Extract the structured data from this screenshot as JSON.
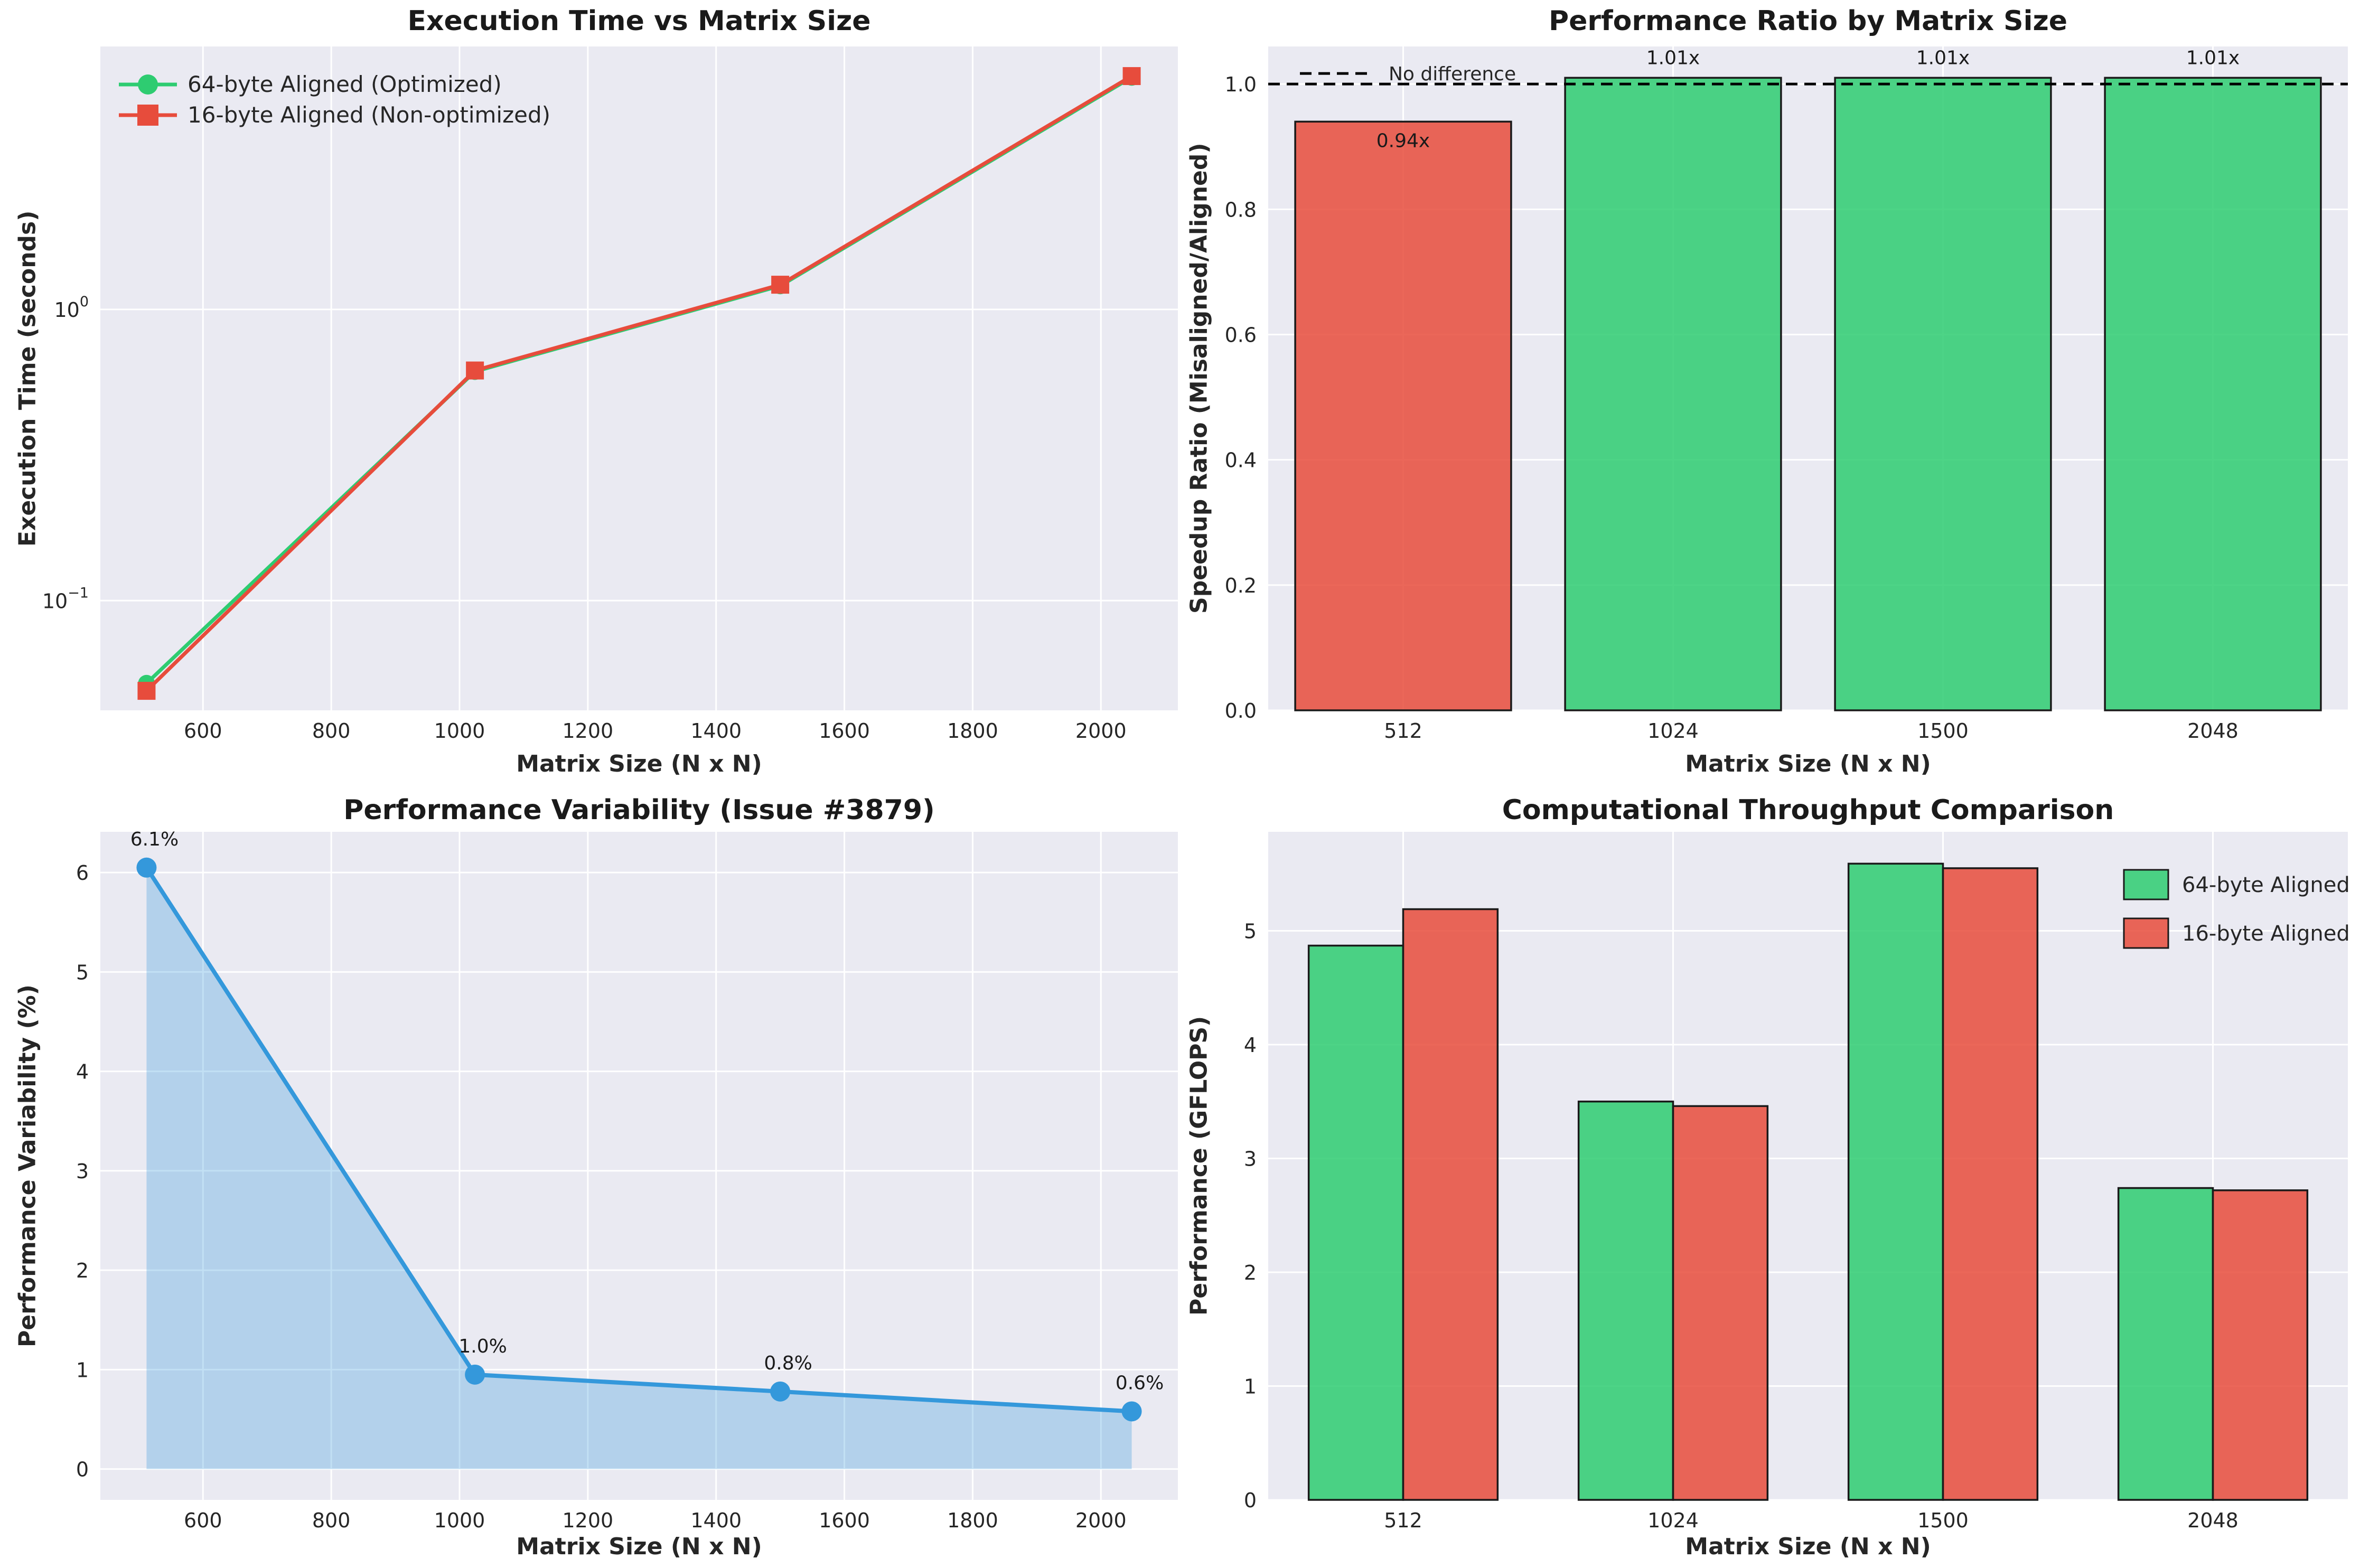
{
  "figure": {
    "background": "#ffffff",
    "plot_background": "#eaeaf2",
    "grid_color": "#ffffff",
    "tick_color": "#262626",
    "title_color": "#1a1a1a",
    "bar_edge_color": "#1a1a1a",
    "accent_green": "#2ecc71",
    "accent_red": "#e74c3c",
    "accent_blue": "#3498db"
  },
  "chart_data": [
    {
      "id": "execution-time",
      "type": "line",
      "title": "Execution Time vs Matrix Size",
      "xlabel": "Matrix Size (N x N)",
      "ylabel": "Execution Time (seconds)",
      "yscale": "log",
      "x": [
        512,
        1024,
        1500,
        2048
      ],
      "series": [
        {
          "name": "64-byte Aligned (Optimized)",
          "color": "#2ecc71",
          "marker": "circle",
          "values": [
            0.052,
            0.612,
            1.205,
            6.27
          ]
        },
        {
          "name": "16-byte Aligned (Non-optimized)",
          "color": "#e74c3c",
          "marker": "square",
          "values": [
            0.049,
            0.617,
            1.216,
            6.33
          ]
        }
      ],
      "xticks": [
        600,
        800,
        1000,
        1200,
        1400,
        1600,
        1800,
        2000
      ],
      "yticks": [
        {
          "value": 1,
          "base": "10",
          "exp": "0"
        },
        {
          "value": 0.1,
          "base": "10",
          "exp": "−1"
        }
      ],
      "xlim": [
        440,
        2120
      ],
      "ylim": [
        0.042,
        8.0
      ],
      "legend_position": "upper left",
      "grid": true
    },
    {
      "id": "performance-ratio",
      "type": "bar",
      "title": "Performance Ratio by Matrix Size",
      "xlabel": "Matrix Size (N x N)",
      "ylabel": "Speedup Ratio (Misaligned/Aligned)",
      "categories": [
        "512",
        "1024",
        "1500",
        "2048"
      ],
      "values": [
        0.94,
        1.01,
        1.01,
        1.01
      ],
      "bar_labels": [
        "0.94x",
        "1.01x",
        "1.01x",
        "1.01x"
      ],
      "bar_colors": [
        "#e74c3c",
        "#2ecc71",
        "#2ecc71",
        "#2ecc71"
      ],
      "bar_alpha": 0.85,
      "bar_width_frac": 0.8,
      "reference_line": {
        "value": 1.0,
        "label": "No difference",
        "style": "dashed",
        "color": "#000000"
      },
      "yticks": [
        {
          "value": 0.0,
          "label": "0.0"
        },
        {
          "value": 0.2,
          "label": "0.2"
        },
        {
          "value": 0.4,
          "label": "0.4"
        },
        {
          "value": 0.6,
          "label": "0.6"
        },
        {
          "value": 0.8,
          "label": "0.8"
        },
        {
          "value": 1.0,
          "label": "1.0"
        }
      ],
      "ylim": [
        0,
        1.06
      ],
      "grid": true
    },
    {
      "id": "performance-variability",
      "type": "area",
      "title": "Performance Variability (Issue #3879)",
      "xlabel": "Matrix Size (N x N)",
      "ylabel": "Performance Variability (%)",
      "x": [
        512,
        1024,
        1500,
        2048
      ],
      "values": [
        6.05,
        0.95,
        0.78,
        0.58
      ],
      "point_labels": [
        "6.1%",
        "1.0%",
        "0.8%",
        "0.6%"
      ],
      "color": "#3498db",
      "fill_alpha": 0.3,
      "fill_baseline": 0,
      "xticks": [
        600,
        800,
        1000,
        1200,
        1400,
        1600,
        1800,
        2000
      ],
      "yticks": [
        0,
        1,
        2,
        3,
        4,
        5,
        6
      ],
      "xlim": [
        440,
        2120
      ],
      "ylim": [
        -0.31,
        6.41
      ],
      "grid": true
    },
    {
      "id": "computational-throughput",
      "type": "grouped-bar",
      "title": "Computational Throughput Comparison",
      "xlabel": "Matrix Size (N x N)",
      "ylabel": "Performance (GFLOPS)",
      "categories": [
        "512",
        "1024",
        "1500",
        "2048"
      ],
      "series": [
        {
          "name": "64-byte Aligned",
          "color": "#2ecc71",
          "values": [
            4.87,
            3.5,
            5.59,
            2.74
          ]
        },
        {
          "name": "16-byte Aligned",
          "color": "#e74c3c",
          "values": [
            5.19,
            3.46,
            5.55,
            2.72
          ]
        }
      ],
      "bar_alpha": 0.85,
      "bar_width_frac": 0.35,
      "yticks": [
        0,
        1,
        2,
        3,
        4,
        5
      ],
      "ylim": [
        0,
        5.87
      ],
      "legend_position": "upper right",
      "grid": true
    }
  ]
}
